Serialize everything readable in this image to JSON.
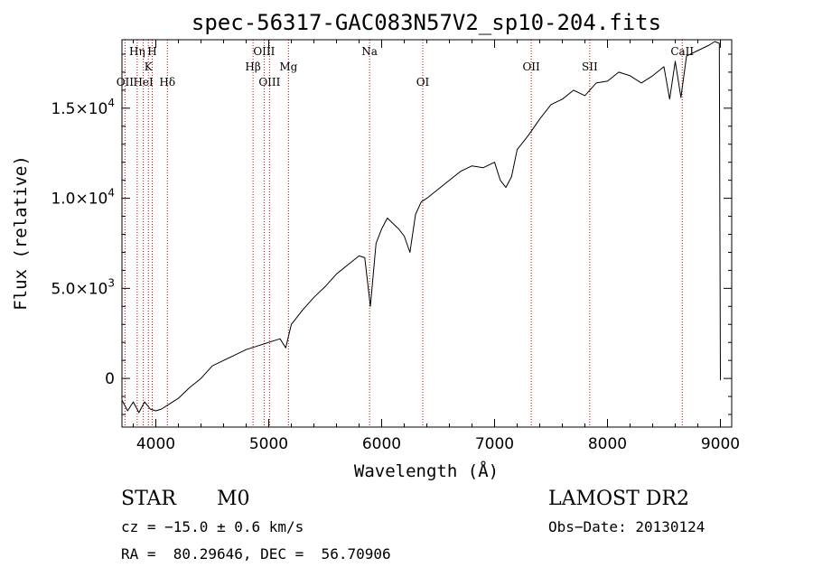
{
  "chart_data": {
    "type": "line",
    "title": "spec-56317-GAC083N57V2_sp10-204.fits",
    "xlabel": "Wavelength (Å)",
    "ylabel": "Flux (relative)",
    "xlim": [
      3700,
      9100
    ],
    "ylim": [
      -2700,
      18800
    ],
    "grid": false,
    "x_ticks": [
      4000,
      5000,
      6000,
      7000,
      8000,
      9000
    ],
    "x_tick_labels": [
      "4000",
      "5000",
      "6000",
      "7000",
      "8000",
      "9000"
    ],
    "y_ticks": [
      0,
      5000,
      10000,
      15000
    ],
    "y_tick_labels": [
      {
        "mantissa": "0",
        "exponent": ""
      },
      {
        "mantissa": "5.0×10",
        "exponent": "3"
      },
      {
        "mantissa": "1.0×10",
        "exponent": "4"
      },
      {
        "mantissa": "1.5×10",
        "exponent": "4"
      }
    ],
    "spectrum": {
      "x": [
        3700,
        3750,
        3800,
        3850,
        3900,
        3950,
        4000,
        4050,
        4100,
        4200,
        4300,
        4400,
        4500,
        4600,
        4700,
        4800,
        4900,
        5000,
        5100,
        5150,
        5200,
        5300,
        5400,
        5500,
        5600,
        5700,
        5800,
        5850,
        5900,
        5950,
        6000,
        6050,
        6100,
        6150,
        6200,
        6250,
        6300,
        6350,
        6400,
        6500,
        6600,
        6700,
        6800,
        6900,
        7000,
        7050,
        7100,
        7150,
        7200,
        7300,
        7400,
        7500,
        7600,
        7700,
        7800,
        7900,
        8000,
        8100,
        8200,
        8300,
        8400,
        8500,
        8550,
        8600,
        8650,
        8700,
        8800,
        8900,
        8950,
        8990,
        9000
      ],
      "y": [
        -1200,
        -1800,
        -1300,
        -1900,
        -1300,
        -1700,
        -1800,
        -1700,
        -1500,
        -1100,
        -500,
        0,
        700,
        1000,
        1300,
        1600,
        1800,
        2000,
        2200,
        1700,
        3000,
        3800,
        4500,
        5100,
        5800,
        6300,
        6800,
        6700,
        4000,
        7500,
        8300,
        8900,
        8600,
        8300,
        7900,
        7000,
        9100,
        9800,
        10000,
        10500,
        11000,
        11500,
        11800,
        11700,
        12000,
        11000,
        10600,
        11200,
        12700,
        13500,
        14400,
        15200,
        15500,
        16000,
        15700,
        16400,
        16500,
        17000,
        16800,
        16400,
        16800,
        17300,
        15500,
        17600,
        15600,
        17900,
        18200,
        18500,
        18700,
        18600,
        -100
      ]
    },
    "lines": [
      {
        "label": "OII",
        "x": 3727,
        "row": 3
      },
      {
        "label": "Hη",
        "x": 3835,
        "row": 1
      },
      {
        "label": "HeI",
        "x": 3889,
        "row": 3
      },
      {
        "label": "K",
        "x": 3934,
        "row": 2
      },
      {
        "label": "H",
        "x": 3968,
        "row": 1
      },
      {
        "label": "Hδ",
        "x": 4102,
        "row": 3
      },
      {
        "label": "Hβ",
        "x": 4861,
        "row": 2
      },
      {
        "label": "OIII",
        "x": 4959,
        "row": 1
      },
      {
        "label": "OIII",
        "x": 5007,
        "row": 3
      },
      {
        "label": "Mg",
        "x": 5175,
        "row": 2
      },
      {
        "label": "Na",
        "x": 5893,
        "row": 1
      },
      {
        "label": "OI",
        "x": 6364,
        "row": 3
      },
      {
        "label": "OII",
        "x": 7325,
        "row": 2
      },
      {
        "label": "SII",
        "x": 7843,
        "row": 2
      },
      {
        "label": "CaII",
        "x": 8662,
        "row": 1
      }
    ],
    "spectrum_color": "#000000",
    "line_marker_color": "#cc0000"
  },
  "info": {
    "class": "STAR",
    "subclass": "M0",
    "redshift": "cz = −15.0 ± 0.6 km/s",
    "coords": "RA =  80.29646, DEC =  56.70906",
    "survey": "LAMOST DR2",
    "obs_date": "Obs−Date: 20130124"
  }
}
